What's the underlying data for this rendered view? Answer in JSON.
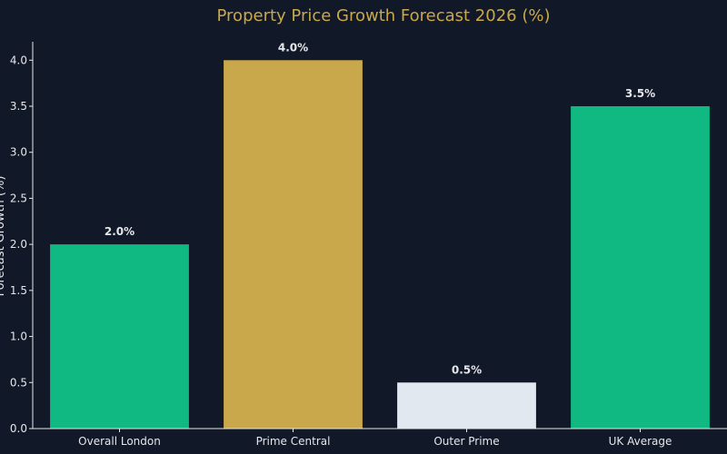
{
  "chart_data": {
    "type": "bar",
    "title": "Property Price Growth Forecast 2026 (%)",
    "xlabel": "",
    "ylabel": "Forecast Growth (%)",
    "ylim": [
      0,
      4.2
    ],
    "yticks": [
      "0.0",
      "0.5",
      "1.0",
      "1.5",
      "2.0",
      "2.5",
      "3.0",
      "3.5",
      "4.0"
    ],
    "ytick_values": [
      0,
      0.5,
      1.0,
      1.5,
      2.0,
      2.5,
      3.0,
      3.5,
      4.0
    ],
    "categories": [
      "Overall London",
      "Prime Central",
      "Outer Prime",
      "UK Average"
    ],
    "values": [
      2.0,
      4.0,
      0.5,
      3.5
    ],
    "value_labels": [
      "2.0%",
      "4.0%",
      "0.5%",
      "3.5%"
    ],
    "bar_colors": [
      "#10b981",
      "#c9a84c",
      "#e2e8f0",
      "#10b981"
    ],
    "grid": false,
    "legend": "none",
    "colors": {
      "background": "#111827",
      "title": "#c9a84c",
      "text": "#e5e7eb",
      "axis": "#e5e7eb"
    }
  }
}
